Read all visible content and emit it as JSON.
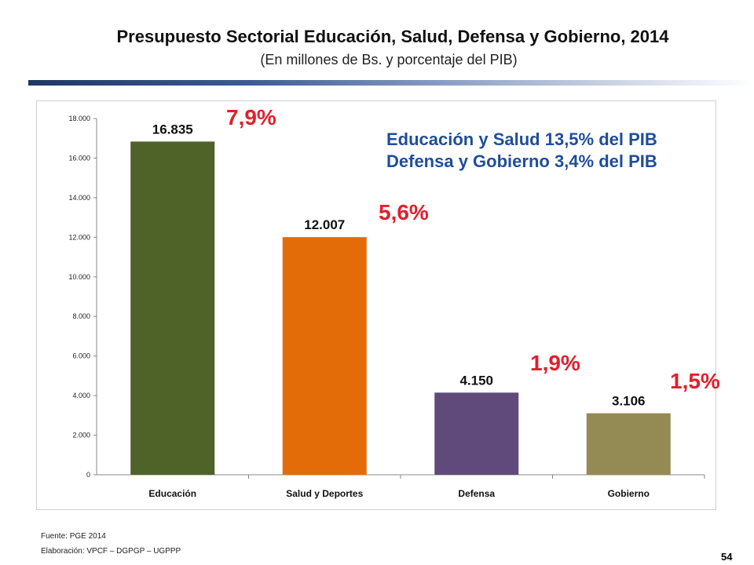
{
  "header": {
    "title": "Presupuesto Sectorial Educación, Salud, Defensa y Gobierno, 2014",
    "subtitle": "(En millones de Bs. y porcentaje del PIB)"
  },
  "chart_data": {
    "type": "bar",
    "categories": [
      "Educación",
      "Salud y Deportes",
      "Defensa",
      "Gobierno"
    ],
    "values": [
      16835,
      12007,
      4150,
      3106
    ],
    "value_labels": [
      "16.835",
      "12.007",
      "4.150",
      "3.106"
    ],
    "colors": [
      "#4f6228",
      "#e36c09",
      "#604a7b",
      "#948a54"
    ],
    "ylim": [
      0,
      18000
    ],
    "yticks": [
      0,
      2000,
      4000,
      6000,
      8000,
      10000,
      12000,
      14000,
      16000,
      18000
    ],
    "ytick_labels": [
      "0",
      "2.000",
      "4.000",
      "6.000",
      "8.000",
      "10.000",
      "12.000",
      "14.000",
      "16.000",
      "18.000"
    ],
    "grid": false,
    "pct_pib": [
      "7,9%",
      "5,6%",
      "1,9%",
      "1,5%"
    ],
    "summary_lines": [
      "Educación y Salud 13,5% del PIB",
      "Defensa y Gobierno 3,4% del PIB"
    ],
    "xlabel": "",
    "ylabel": ""
  },
  "footer": {
    "source": "Fuente: PGE 2014",
    "prepared_by": "Elaboración: VPCF – DGPGP – UGPPP",
    "page_number": "54"
  }
}
